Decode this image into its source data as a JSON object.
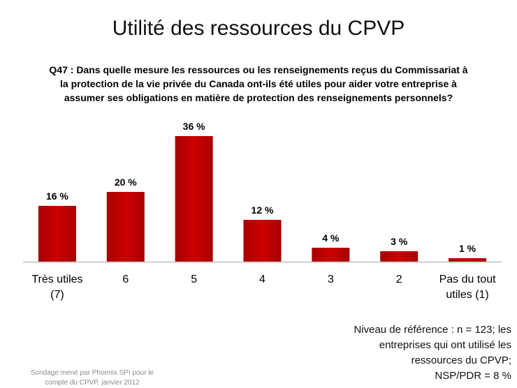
{
  "slide": {
    "title": "Utilité des ressources du CPVP",
    "question_lines": [
      "Q47 : Dans quelle mesure les ressources ou les renseignements reçus du Commissariat à",
      "la protection de la vie privée du Canada ont-ils été utiles pour aider votre entreprise à",
      "assumer ses obligations en matière de protection des renseignements personnels?"
    ],
    "note_lines": [
      "Niveau de référence : n = 123; les",
      "entreprises qui ont utilisé les",
      "ressources du CPVP;",
      "NSP/PDR = 8 %"
    ],
    "source_lines": [
      "Sondage mené par Phoenix SPI pour le",
      "compte du CPVP, janvier 2012"
    ]
  },
  "chart_data": {
    "type": "bar",
    "categories": [
      [
        "Très utiles",
        "(7)"
      ],
      [
        "6"
      ],
      [
        "5"
      ],
      [
        "4"
      ],
      [
        "3"
      ],
      [
        "2"
      ],
      [
        "Pas du tout",
        "utiles (1)"
      ]
    ],
    "values": [
      16,
      20,
      36,
      12,
      4,
      3,
      1
    ],
    "value_labels": [
      "16 %",
      "20 %",
      "36 %",
      "12 %",
      "4 %",
      "3 %",
      "1 %"
    ],
    "ylim": [
      0,
      36
    ],
    "grid": false,
    "legend": "none",
    "colors": {
      "bar": "#cc0000",
      "bar_dark": "#a80000",
      "baseline": "#bfbfbf"
    }
  }
}
